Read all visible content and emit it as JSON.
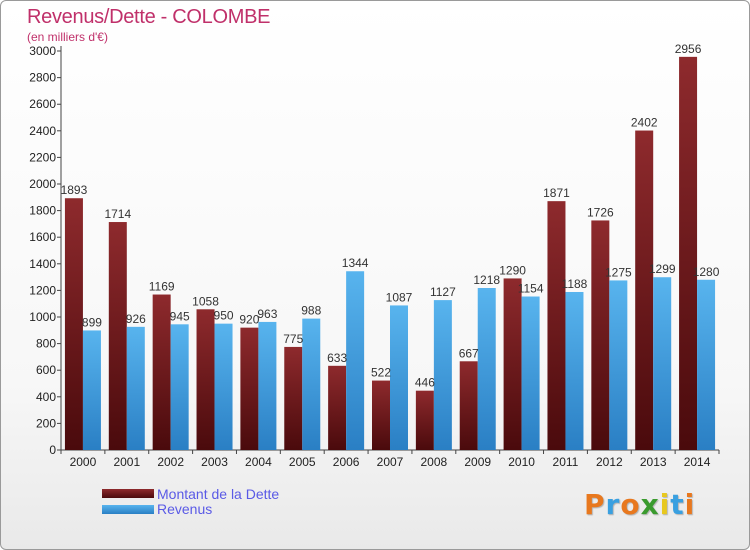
{
  "header": {
    "title": "Revenus/Dette - COLOMBE",
    "subtitle": "(en milliers d'€)"
  },
  "legend": [
    {
      "label": "Montant de la Dette",
      "color": "#7a1f22"
    },
    {
      "label": "Revenus",
      "color": "#3a9de0"
    }
  ],
  "brand": {
    "letters": [
      "P",
      "r",
      "o",
      "x",
      "i",
      "t",
      "i"
    ],
    "colors": [
      "#e8781e",
      "#3aa0e0",
      "#e8781e",
      "#3a9b2e",
      "#e8c81e",
      "#3aa0e0",
      "#e8781e"
    ]
  },
  "chart_data": {
    "type": "bar",
    "title": "Revenus/Dette - COLOMBE",
    "subtitle": "(en milliers d'€)",
    "categories": [
      "2000",
      "2001",
      "2002",
      "2003",
      "2004",
      "2005",
      "2006",
      "2007",
      "2008",
      "2009",
      "2010",
      "2011",
      "2012",
      "2013",
      "2014"
    ],
    "series": [
      {
        "name": "Montant de la Dette",
        "color": "#7a1f22",
        "values": [
          1893,
          1714,
          1169,
          1058,
          920,
          775,
          633,
          522,
          446,
          667,
          1290,
          1871,
          1726,
          2402,
          2956
        ]
      },
      {
        "name": "Revenus",
        "color": "#3a9de0",
        "values": [
          899,
          926,
          945,
          950,
          963,
          988,
          1344,
          1087,
          1127,
          1218,
          1154,
          1188,
          1275,
          1299,
          1280
        ]
      }
    ],
    "ylim": [
      0,
      3000
    ],
    "yticks": [
      0,
      200,
      400,
      600,
      800,
      1000,
      1200,
      1400,
      1600,
      1800,
      2000,
      2200,
      2400,
      2600,
      2800,
      3000
    ],
    "grid": false,
    "legend_position": "bottom-left"
  }
}
